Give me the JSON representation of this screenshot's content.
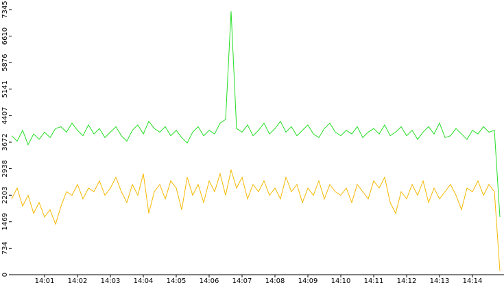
{
  "chart_data": {
    "type": "line",
    "categories": [
      null,
      null,
      null,
      null,
      null,
      null,
      "14:01",
      null,
      null,
      null,
      null,
      null,
      "14:02",
      null,
      null,
      null,
      null,
      null,
      "14:03",
      null,
      null,
      null,
      null,
      null,
      "14:04",
      null,
      null,
      null,
      null,
      null,
      "14:05",
      null,
      null,
      null,
      null,
      null,
      "14:06",
      null,
      null,
      null,
      null,
      null,
      "14:07",
      null,
      null,
      null,
      null,
      null,
      "14:08",
      null,
      null,
      null,
      null,
      null,
      "14:09",
      null,
      null,
      null,
      null,
      null,
      "14:10",
      null,
      null,
      null,
      null,
      null,
      "14:11",
      null,
      null,
      null,
      null,
      null,
      "14:12",
      null,
      null,
      null,
      null,
      null,
      "14:13",
      null,
      null,
      null,
      null,
      null,
      "14:14",
      null,
      null,
      null,
      null,
      null
    ],
    "series": [
      {
        "color": "#22dd22",
        "values": [
          3850,
          3700,
          4000,
          3600,
          3900,
          3750,
          3950,
          3800,
          4050,
          4100,
          3950,
          4200,
          4000,
          3850,
          4150,
          3900,
          4050,
          3800,
          3950,
          4100,
          3850,
          3700,
          4000,
          4150,
          3900,
          4250,
          4050,
          3950,
          4100,
          3850,
          4000,
          3800,
          3650,
          3950,
          4100,
          3850,
          4000,
          3900,
          4200,
          4300,
          7300,
          4050,
          3950,
          4150,
          3850,
          4000,
          4200,
          3900,
          4050,
          4250,
          3950,
          4100,
          3850,
          4000,
          4150,
          3900,
          3800,
          4050,
          4200,
          3950,
          3850,
          4000,
          3900,
          4100,
          3800,
          3950,
          4050,
          3900,
          4150,
          3850,
          3950,
          4100,
          3850,
          4000,
          3750,
          3950,
          4100,
          3900,
          4200,
          3800,
          3850,
          4050,
          3900,
          3750,
          4000,
          3900,
          4100,
          3950,
          4000,
          1600
        ]
      },
      {
        "color": "#f5b800",
        "values": [
          2100,
          2400,
          1900,
          2200,
          1700,
          2000,
          1600,
          1800,
          1400,
          1900,
          2300,
          2200,
          2500,
          2100,
          2400,
          2300,
          2600,
          2200,
          2400,
          2700,
          2300,
          2000,
          2500,
          2200,
          2800,
          1700,
          2300,
          2500,
          2100,
          2600,
          2400,
          1800,
          2700,
          2200,
          2500,
          2000,
          2600,
          2300,
          2800,
          2200,
          2900,
          2400,
          2700,
          2100,
          2500,
          2300,
          2600,
          2200,
          2400,
          2100,
          2700,
          2300,
          2500,
          2000,
          2400,
          2200,
          2600,
          2100,
          2500,
          2300,
          2200,
          2400,
          2000,
          2500,
          2300,
          2100,
          2600,
          2400,
          2700,
          2000,
          1700,
          2300,
          2100,
          2500,
          2200,
          2600,
          2000,
          2400,
          2100,
          2300,
          2500,
          2200,
          1800,
          2400,
          2300,
          2600,
          2200,
          2500,
          2300,
          100
        ]
      }
    ],
    "ylim": [
      0,
      7345
    ],
    "yticks": [
      0,
      734,
      1469,
      2203,
      2938,
      3672,
      4407,
      5141,
      5876,
      6610,
      7345
    ]
  }
}
